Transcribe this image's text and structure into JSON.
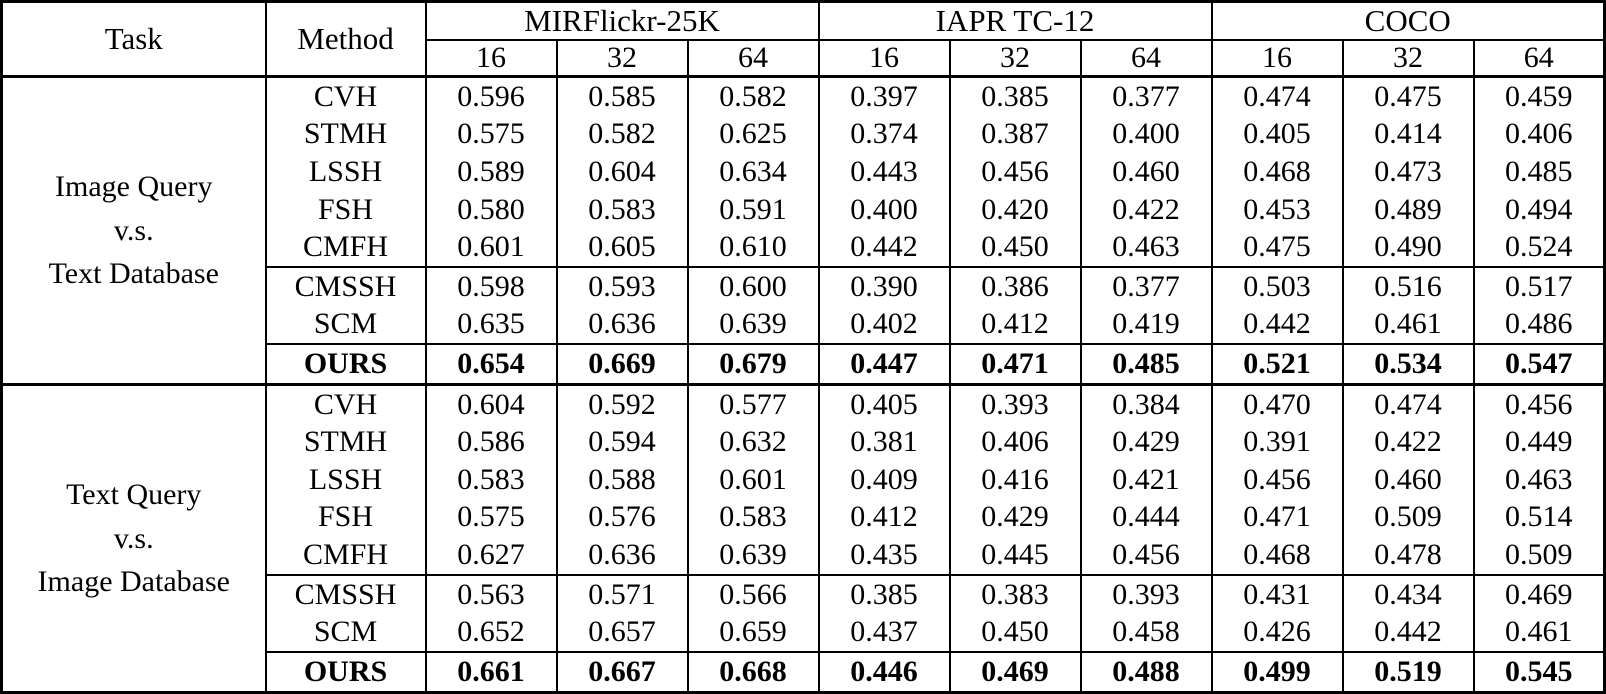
{
  "table": {
    "header": {
      "task": "Task",
      "method": "Method",
      "datasets": [
        "MIRFlickr-25K",
        "IAPR TC-12",
        "COCO"
      ],
      "bits": [
        "16",
        "32",
        "64"
      ]
    },
    "sections": [
      {
        "task_lines": [
          "Image Query",
          "v.s.",
          "Text Database"
        ],
        "groups": [
          {
            "rows": [
              {
                "method": "CVH",
                "bold": false,
                "values": [
                  "0.596",
                  "0.585",
                  "0.582",
                  "0.397",
                  "0.385",
                  "0.377",
                  "0.474",
                  "0.475",
                  "0.459"
                ]
              },
              {
                "method": "STMH",
                "bold": false,
                "values": [
                  "0.575",
                  "0.582",
                  "0.625",
                  "0.374",
                  "0.387",
                  "0.400",
                  "0.405",
                  "0.414",
                  "0.406"
                ]
              },
              {
                "method": "LSSH",
                "bold": false,
                "values": [
                  "0.589",
                  "0.604",
                  "0.634",
                  "0.443",
                  "0.456",
                  "0.460",
                  "0.468",
                  "0.473",
                  "0.485"
                ]
              },
              {
                "method": "FSH",
                "bold": false,
                "values": [
                  "0.580",
                  "0.583",
                  "0.591",
                  "0.400",
                  "0.420",
                  "0.422",
                  "0.453",
                  "0.489",
                  "0.494"
                ]
              },
              {
                "method": "CMFH",
                "bold": false,
                "values": [
                  "0.601",
                  "0.605",
                  "0.610",
                  "0.442",
                  "0.450",
                  "0.463",
                  "0.475",
                  "0.490",
                  "0.524"
                ]
              }
            ]
          },
          {
            "rows": [
              {
                "method": "CMSSH",
                "bold": false,
                "values": [
                  "0.598",
                  "0.593",
                  "0.600",
                  "0.390",
                  "0.386",
                  "0.377",
                  "0.503",
                  "0.516",
                  "0.517"
                ]
              },
              {
                "method": "SCM",
                "bold": false,
                "values": [
                  "0.635",
                  "0.636",
                  "0.639",
                  "0.402",
                  "0.412",
                  "0.419",
                  "0.442",
                  "0.461",
                  "0.486"
                ]
              }
            ]
          },
          {
            "rows": [
              {
                "method": "OURS",
                "bold": true,
                "values": [
                  "0.654",
                  "0.669",
                  "0.679",
                  "0.447",
                  "0.471",
                  "0.485",
                  "0.521",
                  "0.534",
                  "0.547"
                ]
              }
            ]
          }
        ]
      },
      {
        "task_lines": [
          "Text Query",
          "v.s.",
          "Image Database"
        ],
        "groups": [
          {
            "rows": [
              {
                "method": "CVH",
                "bold": false,
                "values": [
                  "0.604",
                  "0.592",
                  "0.577",
                  "0.405",
                  "0.393",
                  "0.384",
                  "0.470",
                  "0.474",
                  "0.456"
                ]
              },
              {
                "method": "STMH",
                "bold": false,
                "values": [
                  "0.586",
                  "0.594",
                  "0.632",
                  "0.381",
                  "0.406",
                  "0.429",
                  "0.391",
                  "0.422",
                  "0.449"
                ]
              },
              {
                "method": "LSSH",
                "bold": false,
                "values": [
                  "0.583",
                  "0.588",
                  "0.601",
                  "0.409",
                  "0.416",
                  "0.421",
                  "0.456",
                  "0.460",
                  "0.463"
                ]
              },
              {
                "method": "FSH",
                "bold": false,
                "values": [
                  "0.575",
                  "0.576",
                  "0.583",
                  "0.412",
                  "0.429",
                  "0.444",
                  "0.471",
                  "0.509",
                  "0.514"
                ]
              },
              {
                "method": "CMFH",
                "bold": false,
                "values": [
                  "0.627",
                  "0.636",
                  "0.639",
                  "0.435",
                  "0.445",
                  "0.456",
                  "0.468",
                  "0.478",
                  "0.509"
                ]
              }
            ]
          },
          {
            "rows": [
              {
                "method": "CMSSH",
                "bold": false,
                "values": [
                  "0.563",
                  "0.571",
                  "0.566",
                  "0.385",
                  "0.383",
                  "0.393",
                  "0.431",
                  "0.434",
                  "0.469"
                ]
              },
              {
                "method": "SCM",
                "bold": false,
                "values": [
                  "0.652",
                  "0.657",
                  "0.659",
                  "0.437",
                  "0.450",
                  "0.458",
                  "0.426",
                  "0.442",
                  "0.461"
                ]
              }
            ]
          },
          {
            "rows": [
              {
                "method": "OURS",
                "bold": true,
                "values": [
                  "0.661",
                  "0.667",
                  "0.668",
                  "0.446",
                  "0.469",
                  "0.488",
                  "0.499",
                  "0.519",
                  "0.545"
                ]
              }
            ]
          }
        ]
      }
    ]
  },
  "chart_data": {
    "type": "table",
    "title": "",
    "columns": [
      "Task",
      "Method",
      "MIRFlickr-25K 16",
      "MIRFlickr-25K 32",
      "MIRFlickr-25K 64",
      "IAPR TC-12 16",
      "IAPR TC-12 32",
      "IAPR TC-12 64",
      "COCO 16",
      "COCO 32",
      "COCO 64"
    ],
    "rows": [
      [
        "Image Query v.s. Text Database",
        "CVH",
        0.596,
        0.585,
        0.582,
        0.397,
        0.385,
        0.377,
        0.474,
        0.475,
        0.459
      ],
      [
        "Image Query v.s. Text Database",
        "STMH",
        0.575,
        0.582,
        0.625,
        0.374,
        0.387,
        0.4,
        0.405,
        0.414,
        0.406
      ],
      [
        "Image Query v.s. Text Database",
        "LSSH",
        0.589,
        0.604,
        0.634,
        0.443,
        0.456,
        0.46,
        0.468,
        0.473,
        0.485
      ],
      [
        "Image Query v.s. Text Database",
        "FSH",
        0.58,
        0.583,
        0.591,
        0.4,
        0.42,
        0.422,
        0.453,
        0.489,
        0.494
      ],
      [
        "Image Query v.s. Text Database",
        "CMFH",
        0.601,
        0.605,
        0.61,
        0.442,
        0.45,
        0.463,
        0.475,
        0.49,
        0.524
      ],
      [
        "Image Query v.s. Text Database",
        "CMSSH",
        0.598,
        0.593,
        0.6,
        0.39,
        0.386,
        0.377,
        0.503,
        0.516,
        0.517
      ],
      [
        "Image Query v.s. Text Database",
        "SCM",
        0.635,
        0.636,
        0.639,
        0.402,
        0.412,
        0.419,
        0.442,
        0.461,
        0.486
      ],
      [
        "Image Query v.s. Text Database",
        "OURS",
        0.654,
        0.669,
        0.679,
        0.447,
        0.471,
        0.485,
        0.521,
        0.534,
        0.547
      ],
      [
        "Text Query v.s. Image Database",
        "CVH",
        0.604,
        0.592,
        0.577,
        0.405,
        0.393,
        0.384,
        0.47,
        0.474,
        0.456
      ],
      [
        "Text Query v.s. Image Database",
        "STMH",
        0.586,
        0.594,
        0.632,
        0.381,
        0.406,
        0.429,
        0.391,
        0.422,
        0.449
      ],
      [
        "Text Query v.s. Image Database",
        "LSSH",
        0.583,
        0.588,
        0.601,
        0.409,
        0.416,
        0.421,
        0.456,
        0.46,
        0.463
      ],
      [
        "Text Query v.s. Image Database",
        "FSH",
        0.575,
        0.576,
        0.583,
        0.412,
        0.429,
        0.444,
        0.471,
        0.509,
        0.514
      ],
      [
        "Text Query v.s. Image Database",
        "CMFH",
        0.627,
        0.636,
        0.639,
        0.435,
        0.445,
        0.456,
        0.468,
        0.478,
        0.509
      ],
      [
        "Text Query v.s. Image Database",
        "CMSSH",
        0.563,
        0.571,
        0.566,
        0.385,
        0.383,
        0.393,
        0.431,
        0.434,
        0.469
      ],
      [
        "Text Query v.s. Image Database",
        "SCM",
        0.652,
        0.657,
        0.659,
        0.437,
        0.45,
        0.458,
        0.426,
        0.442,
        0.461
      ],
      [
        "Text Query v.s. Image Database",
        "OURS",
        0.661,
        0.667,
        0.668,
        0.446,
        0.469,
        0.488,
        0.499,
        0.519,
        0.545
      ]
    ]
  }
}
